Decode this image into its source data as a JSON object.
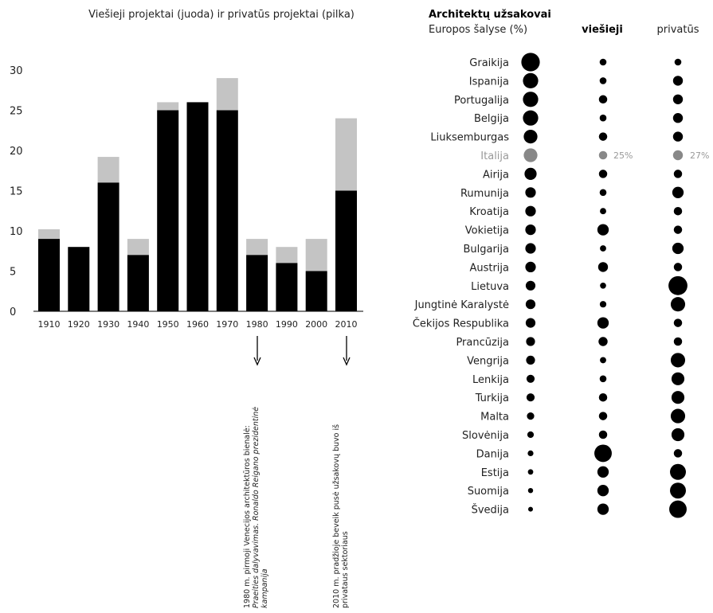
{
  "chart_data": [
    {
      "type": "bar",
      "title": "Viešieji projektai (juoda) ir privatūs projektai (pilka)",
      "categories": [
        "1910",
        "1920",
        "1930",
        "1940",
        "1950",
        "1960",
        "1970",
        "1980",
        "1990",
        "2000",
        "2010"
      ],
      "series": [
        {
          "name": "Viešieji projektai",
          "color": "#000000",
          "values": [
            9,
            8,
            16,
            7,
            25,
            26,
            25,
            7,
            6,
            5,
            15
          ]
        },
        {
          "name": "privatūs projektai",
          "color": "#c4c4c4",
          "values": [
            1.2,
            0,
            3.2,
            2,
            1,
            0,
            4,
            2,
            2,
            4,
            9
          ]
        }
      ],
      "stacked": true,
      "ylim": [
        0,
        30
      ],
      "yticks": [
        0,
        5,
        10,
        15,
        20,
        25,
        30
      ],
      "annotations": [
        {
          "category": "1980",
          "lines": [
            "1980 m. pirmoji Venecijos architektūros bienalė:",
            "Praeities dalyvavimas. Ronaldo Reigano prezidentinė",
            "kampanija"
          ]
        },
        {
          "category": "2010",
          "lines": [
            "2010 m. pradžioje beveik pusė užsakovų buvo iš",
            "privataus sektoriaus"
          ]
        }
      ]
    },
    {
      "type": "bubble-table",
      "title": "Architektų užsakovai",
      "subtitle": "Europos šalyse (%)",
      "columns": [
        "",
        "viešieji",
        "privatūs"
      ],
      "highlight_color": "#888888",
      "rows": [
        {
          "country": "Graikija",
          "total": 10,
          "public": 2,
          "private": 2
        },
        {
          "country": "Ispanija",
          "total": 8,
          "public": 2,
          "private": 4
        },
        {
          "country": "Portugalija",
          "total": 8,
          "public": 3,
          "private": 4
        },
        {
          "country": "Belgija",
          "total": 8,
          "public": 2,
          "private": 4
        },
        {
          "country": "Liuksemburgas",
          "total": 7,
          "public": 3,
          "private": 4
        },
        {
          "country": "Italija",
          "total": 7,
          "public": 3,
          "private": 4,
          "highlight": true,
          "public_label": "25%",
          "private_label": "27%"
        },
        {
          "country": "Airija",
          "total": 6,
          "public": 3,
          "private": 3
        },
        {
          "country": "Rumunija",
          "total": 5,
          "public": 2,
          "private": 5
        },
        {
          "country": "Kroatija",
          "total": 5,
          "public": 1.6,
          "private": 3
        },
        {
          "country": "Vokietija",
          "total": 5,
          "public": 5,
          "private": 3
        },
        {
          "country": "Bulgarija",
          "total": 5,
          "public": 1.6,
          "private": 5
        },
        {
          "country": "Austrija",
          "total": 5,
          "public": 4,
          "private": 3
        },
        {
          "country": "Lietuva",
          "total": 4.5,
          "public": 1.5,
          "private": 10
        },
        {
          "country": "Jungtinė Karalystė",
          "total": 4.5,
          "public": 1.8,
          "private": 7
        },
        {
          "country": "Čekijos Respublika",
          "total": 4.5,
          "public": 5,
          "private": 3
        },
        {
          "country": "Prancūzija",
          "total": 4,
          "public": 3.5,
          "private": 3
        },
        {
          "country": "Vengrija",
          "total": 4,
          "public": 1.6,
          "private": 7
        },
        {
          "country": "Lenkija",
          "total": 3.5,
          "public": 2,
          "private": 6
        },
        {
          "country": "Turkija",
          "total": 3.5,
          "public": 3,
          "private": 6
        },
        {
          "country": "Malta",
          "total": 3,
          "public": 3,
          "private": 7
        },
        {
          "country": "Slovėnija",
          "total": 2.5,
          "public": 3,
          "private": 6
        },
        {
          "country": "Danija",
          "total": 2,
          "public": 9,
          "private": 3
        },
        {
          "country": "Estija",
          "total": 1.8,
          "public": 5,
          "private": 8
        },
        {
          "country": "Suomija",
          "total": 1.6,
          "public": 5,
          "private": 8
        },
        {
          "country": "Švedija",
          "total": 1.4,
          "public": 5,
          "private": 9
        }
      ]
    }
  ]
}
